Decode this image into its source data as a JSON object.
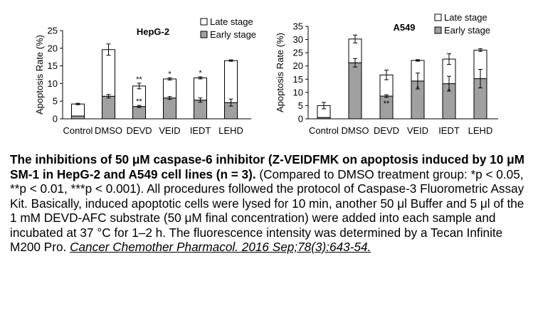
{
  "chart_data": [
    {
      "type": "bar",
      "stacked": true,
      "title": "HepG-2",
      "ylabel": "Apoptosis Rate (%)",
      "ylim": [
        0,
        25
      ],
      "yticks": [
        0,
        5,
        10,
        15,
        20,
        25
      ],
      "categories": [
        "Control",
        "DMSO",
        "DEVD",
        "VEID",
        "IEDT",
        "LEHD"
      ],
      "series": [
        {
          "name": "Early stage",
          "color": "#a0a0a0",
          "values": [
            0.8,
            6.4,
            3.5,
            5.9,
            5.3,
            4.6
          ],
          "errors": [
            0,
            0.5,
            0.3,
            0.4,
            0.6,
            1.0
          ],
          "sig": [
            "",
            "",
            "**",
            "",
            "",
            ""
          ]
        },
        {
          "name": "Late stage",
          "color": "#ffffff",
          "values": [
            3.4,
            13.2,
            5.8,
            5.4,
            6.3,
            11.9
          ],
          "errors": [
            0.2,
            1.6,
            0.8,
            0.3,
            0.3,
            0.2
          ],
          "sig": [
            "",
            "",
            "**",
            "*",
            "*",
            ""
          ]
        }
      ],
      "legend": "top-right"
    },
    {
      "type": "bar",
      "stacked": true,
      "title": "A549",
      "ylabel": "Apoptosis Rate (%)",
      "ylim": [
        0,
        35
      ],
      "yticks": [
        0,
        5,
        10,
        15,
        20,
        25,
        30,
        35
      ],
      "categories": [
        "Control",
        "DMSO",
        "DEVD",
        "VEID",
        "IEDT",
        "LEHD"
      ],
      "series": [
        {
          "name": "Early stage",
          "color": "#a0a0a0",
          "values": [
            0.5,
            21.2,
            8.6,
            14.3,
            13.3,
            15.2
          ],
          "errors": [
            0,
            1.6,
            0.5,
            3.0,
            2.8,
            3.5
          ],
          "sig": [
            "",
            "",
            "**",
            "*",
            "*",
            ""
          ]
        },
        {
          "name": "Late stage",
          "color": "#ffffff",
          "values": [
            4.5,
            9.0,
            8.0,
            7.8,
            9.3,
            10.8
          ],
          "errors": [
            1.2,
            1.5,
            1.8,
            0.3,
            2.0,
            0.5
          ],
          "sig": [
            "",
            "",
            "",
            "",
            "",
            ""
          ]
        }
      ],
      "legend": "top-right"
    }
  ],
  "caption": {
    "bold": "The inhibitions of 50 μM caspase-6 inhibitor (Z-VEIDFMK on apoptosis induced by 10 μM SM-1 in HepG-2 and A549 cell lines (n = 3).",
    "body": " (Compared to DMSO treatment group: *p < 0.05, **p < 0.01, ***p < 0.001). All procedures followed the protocol of Caspase-3 Fluorometric Assay Kit. Basically, induced apoptotic cells were lysed for 10 min, another 50 μl Buffer and 5 μl of the 1 mM DEVD-AFC substrate (50 μM final concentration) were added into each sample and incubated at 37 °C for 1–2 h. The fluorescence intensity was determined by a Tecan Infinite M200 Pro. ",
    "reference": "Cancer Chemother Pharmacol. 2016 Sep;78(3):643-54."
  }
}
